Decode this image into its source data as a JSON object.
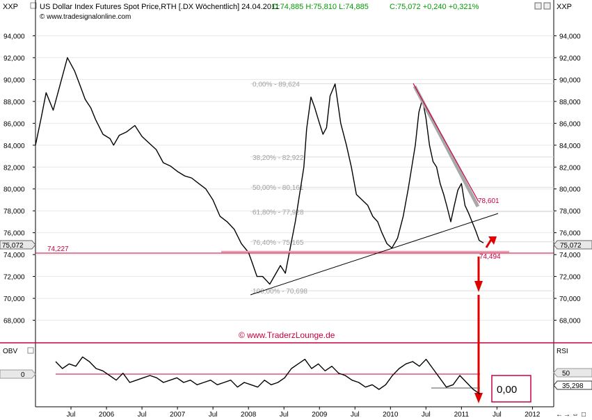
{
  "header": {
    "symbol": "XXP",
    "title": "US Dollar Index Futures Spot Price,RTH [.DX  Wöchentlich] 24.04.2011",
    "ohlc": "O:74,885 H:75,810 L:74,885",
    "change": "C:75,072 +0,240 +0,321%",
    "copyright": "© www.tradesignalonline.com",
    "right_symbol": "XXP"
  },
  "colors": {
    "price": "#000000",
    "resistance": "#c8003c",
    "fib": "#b0b0b0",
    "arrow": "#e00000",
    "change_green": "#009900",
    "trend_gray": "#a8a8a8"
  },
  "chart_data": [
    {
      "type": "line",
      "title": "US Dollar Index Futures Spot Price",
      "ylim": [
        66000,
        96000
      ],
      "ytick_labels": [
        "94,000",
        "92,000",
        "90,000",
        "88,000",
        "86,000",
        "84,000",
        "82,000",
        "80,000",
        "78,000",
        "76,000",
        "74,000",
        "72,000",
        "70,000",
        "68,000"
      ],
      "y_ticks": [
        94000,
        92000,
        90000,
        88000,
        86000,
        84000,
        82000,
        80000,
        78000,
        76000,
        74000,
        72000,
        70000,
        68000
      ],
      "xlim": [
        2005.0,
        2012.3
      ],
      "xtick_labels": [
        "Jul",
        "2006",
        "Jul",
        "2007",
        "Jul",
        "2008",
        "Jul",
        "2009",
        "Jul",
        "2010",
        "Jul",
        "2011",
        "Jul",
        "2012"
      ],
      "x_ticks": [
        2005.5,
        2006,
        2006.5,
        2007,
        2007.5,
        2008,
        2008.5,
        2009,
        2009.5,
        2010,
        2010.5,
        2011,
        2011.5,
        2012
      ],
      "series": [
        {
          "x": [
            2005.0,
            2005.08,
            2005.15,
            2005.25,
            2005.35,
            2005.45,
            2005.55,
            2005.62,
            2005.7,
            2005.78,
            2005.85,
            2005.95,
            2006.05,
            2006.1,
            2006.18,
            2006.28,
            2006.4,
            2006.5,
            2006.6,
            2006.7,
            2006.8,
            2006.9,
            2007.0,
            2007.1,
            2007.2,
            2007.3,
            2007.4,
            2007.5,
            2007.6,
            2007.7,
            2007.8,
            2007.9,
            2008.0,
            2008.05,
            2008.12,
            2008.2,
            2008.3,
            2008.38,
            2008.45,
            2008.52,
            2008.6,
            2008.66,
            2008.72,
            2008.78,
            2008.82,
            2008.88,
            2008.93,
            2009.0,
            2009.05,
            2009.1,
            2009.15,
            2009.22,
            2009.3,
            2009.38,
            2009.45,
            2009.52,
            2009.6,
            2009.68,
            2009.75,
            2009.82,
            2009.88,
            2009.95,
            2010.02,
            2010.1,
            2010.18,
            2010.25,
            2010.3,
            2010.35,
            2010.4,
            2010.45,
            2010.5,
            2010.55,
            2010.6,
            2010.65,
            2010.7,
            2010.75,
            2010.8,
            2010.85,
            2010.9,
            2010.95,
            2011.0,
            2011.05,
            2011.1,
            2011.15,
            2011.2,
            2011.25,
            2011.31
          ],
          "y": [
            84000,
            86500,
            88800,
            87200,
            89600,
            92000,
            90800,
            89600,
            88200,
            87400,
            86300,
            85000,
            84600,
            84000,
            84900,
            85200,
            85800,
            84800,
            84200,
            83600,
            82400,
            82100,
            81600,
            81200,
            81000,
            80500,
            80000,
            79000,
            77500,
            77000,
            76300,
            75000,
            74200,
            73300,
            72000,
            72000,
            71300,
            72200,
            73000,
            72300,
            75000,
            77000,
            79500,
            82000,
            85500,
            88400,
            87500,
            86000,
            85000,
            85600,
            88500,
            89600,
            86000,
            84000,
            82000,
            79500,
            79000,
            78500,
            77500,
            77000,
            76000,
            75000,
            74600,
            75500,
            77500,
            80000,
            82000,
            84000,
            87000,
            88200,
            86500,
            84000,
            82500,
            82000,
            80500,
            79500,
            78300,
            77000,
            78500,
            79900,
            80500,
            78500,
            77800,
            77000,
            76200,
            75300,
            75072
          ]
        }
      ],
      "fibonacci": [
        {
          "label": "0,00% - 89,624",
          "value": 89624
        },
        {
          "label": "38,20% - 82,922",
          "value": 82922
        },
        {
          "label": "50,00% - 80,161",
          "value": 80161
        },
        {
          "label": "61,80% - 77,928",
          "value": 77928
        },
        {
          "label": "76,40% - 75,165",
          "value": 75165
        },
        {
          "label": "100,00% - 70,698",
          "value": 70698
        }
      ],
      "annotations": {
        "support_label": "74,227",
        "support_value": 74227,
        "target_label": "74,494",
        "downtrend_label": "78,601",
        "last_price": "75,072",
        "watermark": "© www.TraderzLounge.de"
      }
    },
    {
      "type": "line",
      "title": "OBV",
      "ylim": [
        -1.2,
        1.2
      ],
      "ytick_labels": [
        "0"
      ],
      "series": [
        {
          "x": [
            2005.0,
            2005.1,
            2005.2,
            2005.3,
            2005.4,
            2005.5,
            2005.6,
            2005.7,
            2005.8,
            2005.9,
            2006.0,
            2006.1,
            2006.2,
            2006.3,
            2006.4,
            2006.5,
            2006.6,
            2006.7,
            2006.8,
            2006.9,
            2007.0,
            2007.1,
            2007.2,
            2007.3,
            2007.4,
            2007.5,
            2007.6,
            2007.7,
            2007.8,
            2007.9,
            2008.0,
            2008.1,
            2008.2,
            2008.3,
            2008.4,
            2008.5,
            2008.6,
            2008.7,
            2008.8,
            2008.9,
            2009.0,
            2009.1,
            2009.2,
            2009.3,
            2009.4,
            2009.5,
            2009.6,
            2009.7,
            2009.8,
            2009.9,
            2010.0,
            2010.1,
            2010.2,
            2010.3,
            2010.4,
            2010.5,
            2010.6,
            2010.7,
            2010.8,
            2010.9,
            2011.0,
            2011.1,
            2011.2,
            2011.3
          ],
          "y": [
            0.6,
            0.3,
            0.5,
            0.4,
            0.8,
            0.6,
            0.3,
            0.2,
            0.0,
            -0.2,
            0.1,
            -0.3,
            -0.2,
            -0.1,
            0.0,
            -0.1,
            -0.3,
            -0.2,
            -0.1,
            -0.3,
            -0.2,
            -0.4,
            -0.3,
            -0.2,
            -0.4,
            -0.3,
            -0.2,
            -0.5,
            -0.3,
            -0.4,
            -0.5,
            -0.2,
            -0.4,
            -0.3,
            -0.1,
            0.3,
            0.5,
            0.7,
            0.3,
            0.5,
            0.2,
            0.4,
            0.1,
            0.0,
            -0.2,
            -0.3,
            -0.5,
            -0.4,
            -0.6,
            -0.4,
            0.0,
            0.3,
            0.5,
            0.6,
            0.4,
            0.7,
            0.3,
            -0.1,
            -0.5,
            -0.4,
            0.0,
            -0.3,
            -0.6,
            -0.8
          ]
        }
      ],
      "annotations": {
        "value_box": "0,00"
      }
    }
  ],
  "rsi": {
    "label": "RSI",
    "level": "50",
    "value": "35,298"
  },
  "nav": {
    "left_arrow": "←",
    "right_arrow": "→",
    "zoom": "⇔",
    "small": "□"
  }
}
